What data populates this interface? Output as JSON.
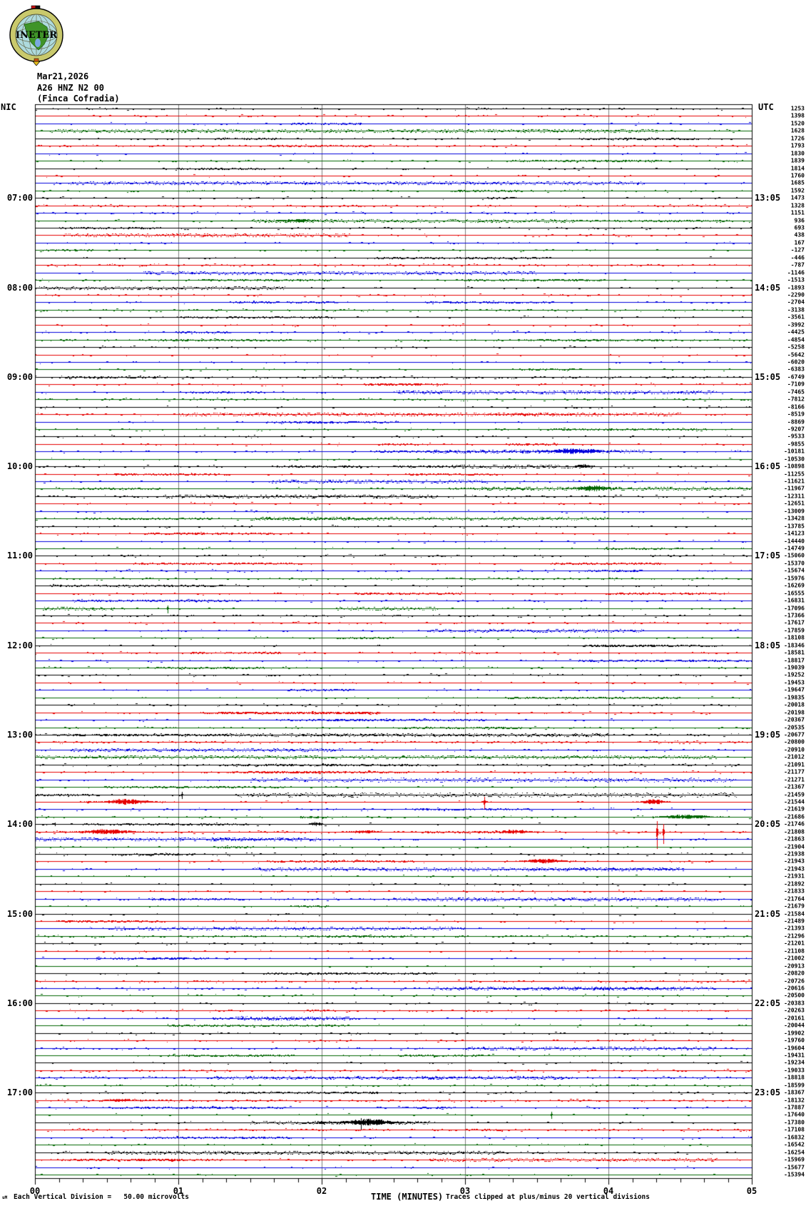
{
  "header": {
    "logo_text": "INETER",
    "date": "Mar21,2026",
    "station": "A26 HNZ N2 00",
    "location": "(Finca Cofradia)"
  },
  "axes": {
    "left_header": "NIC",
    "right_header": "UTC",
    "x_title": "TIME (MINUTES)",
    "x_ticks": [
      "00",
      "01",
      "02",
      "03",
      "04",
      "05"
    ],
    "footer_prefix": "uM",
    "footer_left": "Each Vertical Division =   50.00 microvolts",
    "footer_right": "Traces clipped at plus/minus 20 vertical divisions"
  },
  "rows": 144,
  "minutes_per_row": 5,
  "label_rows": [
    13,
    25,
    37,
    49,
    61,
    73,
    85,
    97,
    109,
    121,
    133
  ],
  "left_labels": [
    "07:00",
    "08:00",
    "09:00",
    "10:00",
    "11:00",
    "12:00",
    "13:00",
    "14:00",
    "15:00",
    "16:00",
    "17:00"
  ],
  "right_labels": [
    "13:05",
    "14:05",
    "15:05",
    "16:05",
    "17:05",
    "18:05",
    "19:05",
    "20:05",
    "21:05",
    "22:05",
    "23:05"
  ],
  "right_values": [
    1253,
    1398,
    1520,
    1628,
    1726,
    1793,
    1830,
    1839,
    1814,
    1760,
    1685,
    1592,
    1473,
    1328,
    1151,
    936,
    693,
    438,
    167,
    -127,
    -446,
    -787,
    -1146,
    -1513,
    -1893,
    -2290,
    -2704,
    -3138,
    -3561,
    -3992,
    -4425,
    -4854,
    -5258,
    -5642,
    -6020,
    -6383,
    -6749,
    -7109,
    -7465,
    -7812,
    -8166,
    -8519,
    -8869,
    -9207,
    -9533,
    -9855,
    -10181,
    -10530,
    -10898,
    -11255,
    -11621,
    -11967,
    -12311,
    -12651,
    -13009,
    -13428,
    -13785,
    -14123,
    -14440,
    -14749,
    -15060,
    -15370,
    -15674,
    -15976,
    -16269,
    -16555,
    -16831,
    -17096,
    -17366,
    -17617,
    -17859,
    -18108,
    -18346,
    -18581,
    -18817,
    -19039,
    -19252,
    -19453,
    -19647,
    -19835,
    -20018,
    -20198,
    -20367,
    -20535,
    -20677,
    -20800,
    -20910,
    -21012,
    -21091,
    -21177,
    -21271,
    -21367,
    -21459,
    -21544,
    -21619,
    -21686,
    -21746,
    -21808,
    -21863,
    -21904,
    -21938,
    -21943,
    -21943,
    -21931,
    -21892,
    -21833,
    -21764,
    -21679,
    -21584,
    -21489,
    -21393,
    -21296,
    -21201,
    -21108,
    -21002,
    -20913,
    -20820,
    -20726,
    -20616,
    -20500,
    -20383,
    -20263,
    -20161,
    -20044,
    -19902,
    -19760,
    -19604,
    -19431,
    -19234,
    -19033,
    -18818,
    -18599,
    -18367,
    -18132,
    -17887,
    -17640,
    -17380,
    -17108,
    -16832,
    -16542,
    -16254,
    -15969,
    -15677,
    -15394
  ],
  "colors": {
    "cycle": [
      "#000000",
      "#e60000",
      "#0000dd",
      "#006600"
    ],
    "grid": "#7d7d7d",
    "frame": "#000000",
    "logo_ring": "#c9c96c",
    "logo_sea": "#aedade",
    "logo_land": "#3f9428",
    "logo_lake": "#7aa8e0",
    "logo_flag_red": "#cc1111",
    "logo_flag_black": "#111111",
    "logo_pointer": "#e8c020"
  },
  "noise_seed": 987651,
  "events": [
    {
      "row": 4,
      "type": "fuzz",
      "x": 0.02,
      "w": 0.85,
      "amp": 1.6
    },
    {
      "row": 11,
      "type": "fuzz",
      "x": 0.05,
      "w": 0.8,
      "amp": 1.5
    },
    {
      "row": 16,
      "type": "fuzz",
      "x": 0.3,
      "w": 0.45,
      "amp": 1.5
    },
    {
      "row": 16,
      "type": "burst",
      "x": 0.345,
      "w": 0.04,
      "amp": 2.5
    },
    {
      "row": 18,
      "type": "fuzz",
      "x": 0.04,
      "w": 0.4,
      "amp": 1.6
    },
    {
      "row": 23,
      "type": "fuzz",
      "x": 0.15,
      "w": 0.55,
      "amp": 1.4
    },
    {
      "row": 25,
      "type": "fuzz",
      "x": 0.0,
      "w": 0.35,
      "amp": 1.4
    },
    {
      "row": 39,
      "type": "fuzz",
      "x": 0.5,
      "w": 0.45,
      "amp": 1.8
    },
    {
      "row": 42,
      "type": "fuzz",
      "x": 0.2,
      "w": 0.7,
      "amp": 1.5
    },
    {
      "row": 47,
      "type": "fuzz",
      "x": 0.55,
      "w": 0.3,
      "amp": 1.6
    },
    {
      "row": 47,
      "type": "burst",
      "x": 0.73,
      "w": 0.05,
      "amp": 5
    },
    {
      "row": 49,
      "type": "fuzz",
      "x": 0.58,
      "w": 0.2,
      "amp": 1.5
    },
    {
      "row": 49,
      "type": "burst",
      "x": 0.757,
      "w": 0.018,
      "amp": 2.8
    },
    {
      "row": 51,
      "type": "fuzz",
      "x": 0.33,
      "w": 0.3,
      "amp": 1.7
    },
    {
      "row": 52,
      "type": "fuzz",
      "x": 0.62,
      "w": 0.38,
      "amp": 1.6
    },
    {
      "row": 52,
      "type": "burst",
      "x": 0.76,
      "w": 0.035,
      "amp": 4.5
    },
    {
      "row": 53,
      "type": "fuzz",
      "x": 0.18,
      "w": 0.38,
      "amp": 1.4
    },
    {
      "row": 56,
      "type": "fuzz",
      "x": 0.3,
      "w": 0.5,
      "amp": 1.3
    },
    {
      "row": 68,
      "type": "spike",
      "x": 0.185,
      "w": 0.004,
      "amp": 7
    },
    {
      "row": 68,
      "type": "fuzz",
      "x": 0.01,
      "w": 0.1,
      "amp": 1.8
    },
    {
      "row": 68,
      "type": "fuzz",
      "x": 0.42,
      "w": 0.14,
      "amp": 1.6
    },
    {
      "row": 71,
      "type": "fuzz",
      "x": 0.55,
      "w": 0.3,
      "amp": 1.3
    },
    {
      "row": 85,
      "type": "fuzz",
      "x": 0.25,
      "w": 0.55,
      "amp": 1.3
    },
    {
      "row": 87,
      "type": "fuzz",
      "x": 0.05,
      "w": 0.38,
      "amp": 1.5
    },
    {
      "row": 88,
      "type": "fuzz",
      "x": 0.0,
      "w": 0.95,
      "amp": 1.6
    },
    {
      "row": 91,
      "type": "fuzz",
      "x": 0.3,
      "w": 0.68,
      "amp": 2.4
    },
    {
      "row": 93,
      "type": "fuzz",
      "x": 0.28,
      "w": 0.7,
      "amp": 2.2
    },
    {
      "row": 93,
      "type": "spike",
      "x": 0.205,
      "w": 0.01,
      "amp": 6
    },
    {
      "row": 94,
      "type": "burst",
      "x": 0.105,
      "w": 0.045,
      "amp": 4.5
    },
    {
      "row": 94,
      "type": "spike",
      "x": 0.627,
      "w": 0.005,
      "amp": 11
    },
    {
      "row": 94,
      "type": "burst",
      "x": 0.853,
      "w": 0.02,
      "amp": 4.5
    },
    {
      "row": 96,
      "type": "burst",
      "x": 0.885,
      "w": 0.05,
      "amp": 3.5
    },
    {
      "row": 97,
      "type": "spike",
      "x": 0.028,
      "w": 0.006,
      "amp": 3
    },
    {
      "row": 97,
      "type": "burst",
      "x": 0.385,
      "w": 0.014,
      "amp": 3
    },
    {
      "row": 98,
      "type": "burst",
      "x": 0.075,
      "w": 0.05,
      "amp": 4
    },
    {
      "row": 98,
      "type": "burst",
      "x": 0.44,
      "w": 0.035,
      "amp": 2.6
    },
    {
      "row": 98,
      "type": "burst",
      "x": 0.655,
      "w": 0.03,
      "amp": 3.5
    },
    {
      "row": 98,
      "type": "spike",
      "x": 0.868,
      "w": 0.006,
      "amp": 24
    },
    {
      "row": 98,
      "type": "spike",
      "x": 0.877,
      "w": 0.005,
      "amp": 17
    },
    {
      "row": 99,
      "type": "fuzz",
      "x": 0.0,
      "w": 0.4,
      "amp": 1.8
    },
    {
      "row": 102,
      "type": "burst",
      "x": 0.69,
      "w": 0.04,
      "amp": 3.5
    },
    {
      "row": 103,
      "type": "fuzz",
      "x": 0.3,
      "w": 0.6,
      "amp": 1.5
    },
    {
      "row": 107,
      "type": "fuzz",
      "x": 0.5,
      "w": 0.45,
      "amp": 1.5
    },
    {
      "row": 111,
      "type": "fuzz",
      "x": 0.1,
      "w": 0.5,
      "amp": 1.4
    },
    {
      "row": 119,
      "type": "fuzz",
      "x": 0.55,
      "w": 0.4,
      "amp": 1.4
    },
    {
      "row": 123,
      "type": "fuzz",
      "x": 0.28,
      "w": 0.16,
      "amp": 2.0
    },
    {
      "row": 127,
      "type": "fuzz",
      "x": 0.6,
      "w": 0.35,
      "amp": 1.4
    },
    {
      "row": 131,
      "type": "fuzz",
      "x": 0.25,
      "w": 0.5,
      "amp": 1.3
    },
    {
      "row": 134,
      "type": "burst",
      "x": 0.1,
      "w": 0.04,
      "amp": 2.2
    },
    {
      "row": 136,
      "type": "spike",
      "x": 0.72,
      "w": 0.004,
      "amp": 6
    },
    {
      "row": 137,
      "type": "fuzz",
      "x": 0.3,
      "w": 0.25,
      "amp": 1.5
    },
    {
      "row": 137,
      "type": "burst",
      "x": 0.44,
      "w": 0.055,
      "amp": 5
    },
    {
      "row": 137,
      "type": "spike",
      "x": 0.455,
      "w": 0.005,
      "amp": 10
    },
    {
      "row": 141,
      "type": "fuzz",
      "x": 0.1,
      "w": 0.55,
      "amp": 1.5
    },
    {
      "row": 142,
      "type": "fuzz",
      "x": 0.55,
      "w": 0.4,
      "amp": 1.6
    }
  ]
}
